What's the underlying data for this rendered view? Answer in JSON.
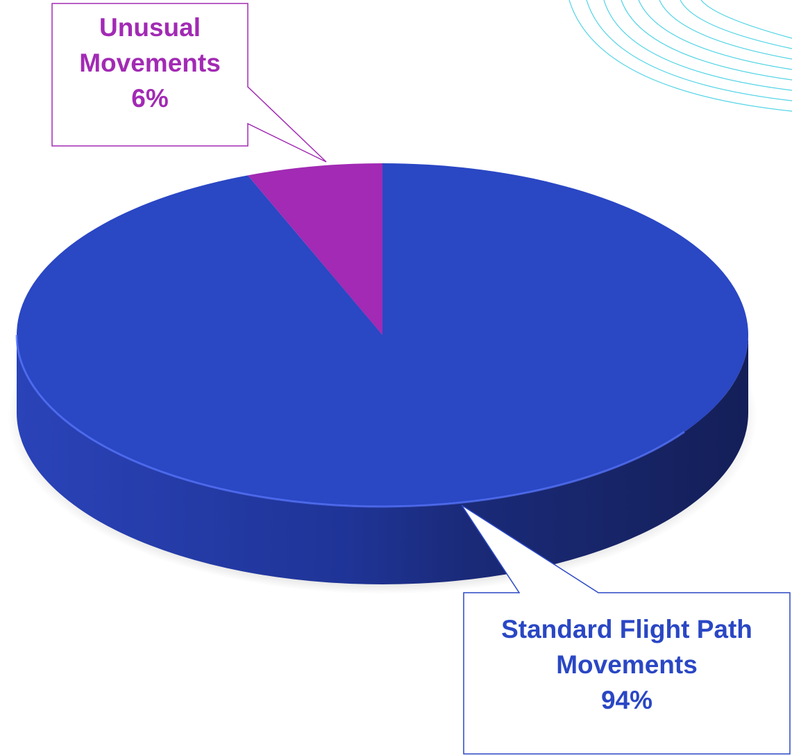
{
  "chart_data": {
    "type": "pie",
    "categories": [
      "Standard Flight Path Movements",
      "Unusual Movements"
    ],
    "values": [
      94,
      6
    ],
    "value_labels": [
      "94%",
      "6%"
    ],
    "colors": [
      "#2a47c4",
      "#a22ab4"
    ],
    "start_angle": 0,
    "direction": "clockwise"
  }
}
